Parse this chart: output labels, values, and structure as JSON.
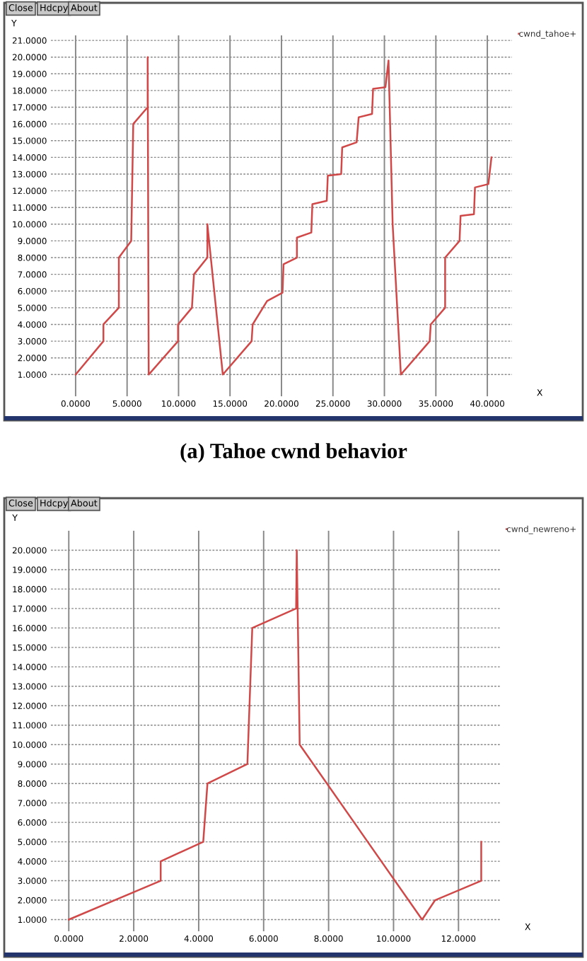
{
  "chart_data": [
    {
      "type": "line",
      "xlabel": "X",
      "ylabel": "Y",
      "annotations": [
        "Close",
        "Hdcpy",
        "About",
        "(a) Tahoe cwnd behavior"
      ],
      "xlim": [
        -2.4,
        42.4
      ],
      "ylim": [
        -0.3,
        21.3
      ],
      "xticks": [
        {
          "value": 0,
          "label": "0.0000"
        },
        {
          "value": 5,
          "label": "5.0000"
        },
        {
          "value": 10,
          "label": "10.0000"
        },
        {
          "value": 15,
          "label": "15.0000"
        },
        {
          "value": 20,
          "label": "20.0000"
        },
        {
          "value": 25,
          "label": "25.0000"
        },
        {
          "value": 30,
          "label": "30.0000"
        },
        {
          "value": 35,
          "label": "35.0000"
        },
        {
          "value": 40,
          "label": "40.0000"
        }
      ],
      "yticks": [
        {
          "value": 1,
          "label": "1.0000"
        },
        {
          "value": 2,
          "label": "2.0000"
        },
        {
          "value": 3,
          "label": "3.0000"
        },
        {
          "value": 4,
          "label": "4.0000"
        },
        {
          "value": 5,
          "label": "5.0000"
        },
        {
          "value": 6,
          "label": "6.0000"
        },
        {
          "value": 7,
          "label": "7.0000"
        },
        {
          "value": 8,
          "label": "8.0000"
        },
        {
          "value": 9,
          "label": "9.0000"
        },
        {
          "value": 10,
          "label": "10.0000"
        },
        {
          "value": 11,
          "label": "11.0000"
        },
        {
          "value": 12,
          "label": "12.0000"
        },
        {
          "value": 13,
          "label": "13.0000"
        },
        {
          "value": 14,
          "label": "14.0000"
        },
        {
          "value": 15,
          "label": "15.0000"
        },
        {
          "value": 16,
          "label": "16.0000"
        },
        {
          "value": 17,
          "label": "17.0000"
        },
        {
          "value": 18,
          "label": "18.0000"
        },
        {
          "value": 19,
          "label": "19.0000"
        },
        {
          "value": 20,
          "label": "20.0000"
        },
        {
          "value": 21,
          "label": "21.0000"
        }
      ],
      "grid": true,
      "legend": "top right",
      "series": [
        {
          "name": "cwnd_tahoe+",
          "color": "#d04848",
          "x": [
            0,
            2.7,
            2.7,
            4.2,
            4.2,
            5.4,
            5.6,
            7.0,
            7.0,
            7.1,
            9.95,
            9.95,
            11.3,
            11.5,
            12.8,
            12.8,
            14.3,
            17.1,
            17.2,
            18.6,
            20.1,
            20.2,
            21.5,
            21.5,
            22.9,
            23.0,
            24.4,
            24.5,
            25.8,
            25.9,
            27.3,
            27.5,
            28.8,
            28.9,
            30.1,
            30.4,
            30.8,
            31.6,
            34.4,
            34.5,
            35.9,
            35.9,
            37.3,
            37.4,
            38.7,
            38.8,
            40.1,
            40.4
          ],
          "values": [
            1,
            3,
            4,
            5,
            8,
            9,
            16,
            17,
            20,
            1,
            3,
            4,
            5,
            7,
            8,
            10,
            1,
            3,
            4,
            5.4,
            5.9,
            7.6,
            8,
            9.2,
            9.5,
            11.2,
            11.4,
            12.9,
            13,
            14.6,
            14.9,
            16.4,
            16.6,
            18.1,
            18.2,
            19.8,
            10,
            1,
            3,
            4,
            5,
            8,
            9,
            10.5,
            10.6,
            12.2,
            12.4,
            14
          ]
        }
      ]
    },
    {
      "type": "line",
      "xlabel": "X",
      "ylabel": "Y",
      "annotations": [
        "Close",
        "Hdcpy",
        "About"
      ],
      "xlim": [
        -0.55,
        13.3
      ],
      "ylim": [
        0.4,
        21.0
      ],
      "xticks": [
        {
          "value": 0,
          "label": "0.0000"
        },
        {
          "value": 2,
          "label": "2.0000"
        },
        {
          "value": 4,
          "label": "4.0000"
        },
        {
          "value": 6,
          "label": "6.0000"
        },
        {
          "value": 8,
          "label": "8.0000"
        },
        {
          "value": 10,
          "label": "10.0000"
        },
        {
          "value": 12,
          "label": "12.0000"
        }
      ],
      "yticks": [
        {
          "value": 1,
          "label": "1.0000"
        },
        {
          "value": 2,
          "label": "2.0000"
        },
        {
          "value": 3,
          "label": "3.0000"
        },
        {
          "value": 4,
          "label": "4.0000"
        },
        {
          "value": 5,
          "label": "5.0000"
        },
        {
          "value": 6,
          "label": "6.0000"
        },
        {
          "value": 7,
          "label": "7.0000"
        },
        {
          "value": 8,
          "label": "8.0000"
        },
        {
          "value": 9,
          "label": "9.0000"
        },
        {
          "value": 10,
          "label": "10.0000"
        },
        {
          "value": 11,
          "label": "11.0000"
        },
        {
          "value": 12,
          "label": "12.0000"
        },
        {
          "value": 13,
          "label": "13.0000"
        },
        {
          "value": 14,
          "label": "14.0000"
        },
        {
          "value": 15,
          "label": "15.0000"
        },
        {
          "value": 16,
          "label": "16.0000"
        },
        {
          "value": 17,
          "label": "17.0000"
        },
        {
          "value": 18,
          "label": "18.0000"
        },
        {
          "value": 19,
          "label": "19.0000"
        },
        {
          "value": 20,
          "label": "20.0000"
        }
      ],
      "grid": true,
      "legend": "top right",
      "series": [
        {
          "name": "cwnd_newreno+",
          "color": "#d04848",
          "x": [
            0,
            2.83,
            2.83,
            4.14,
            4.27,
            5.5,
            5.65,
            7.0,
            7.02,
            7.11,
            10.88,
            11.28,
            12.7,
            12.7
          ],
          "values": [
            1,
            3,
            4,
            5,
            8,
            9,
            16,
            17,
            20,
            10,
            1,
            2,
            3,
            5
          ]
        }
      ]
    }
  ]
}
